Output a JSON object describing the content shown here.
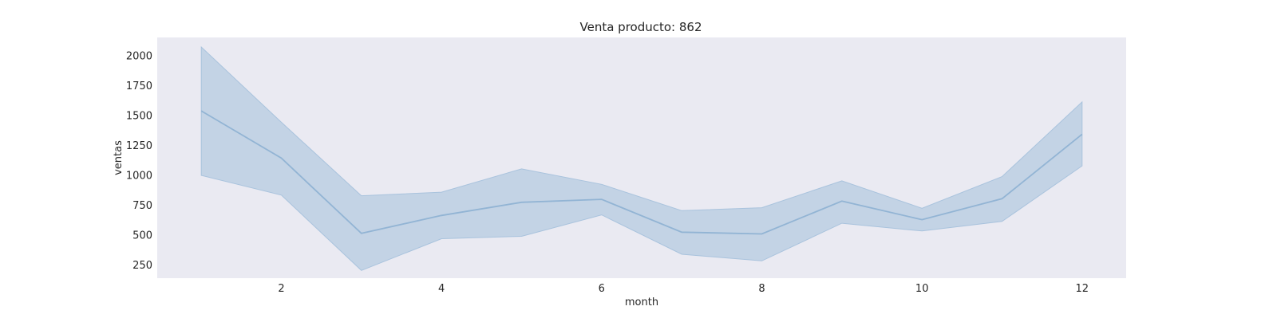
{
  "chart_data": {
    "type": "line",
    "title": "Venta producto: 862",
    "xlabel": "month",
    "ylabel": "ventas",
    "xlim": [
      0.45,
      12.55
    ],
    "ylim": [
      135,
      2150
    ],
    "x_ticks": [
      2,
      4,
      6,
      8,
      10,
      12
    ],
    "y_ticks": [
      250,
      500,
      750,
      1000,
      1250,
      1500,
      1750,
      2000
    ],
    "grid": false,
    "legend": "none",
    "colors": {
      "plot_bg": "#eaeaf2",
      "line": "#92b4d4",
      "band": "#c3d3e5",
      "band_edge": "#a9c3dd"
    },
    "series": [
      {
        "x": [
          1,
          2,
          3,
          4,
          5,
          6,
          7,
          8,
          9,
          10,
          11,
          12
        ],
        "y": [
          1535,
          1140,
          510,
          660,
          770,
          795,
          520,
          505,
          780,
          625,
          800,
          1340
        ],
        "ci_lower": [
          995,
          830,
          200,
          465,
          485,
          665,
          335,
          280,
          595,
          530,
          610,
          1075
        ],
        "ci_upper": [
          2070,
          1440,
          825,
          855,
          1050,
          920,
          700,
          725,
          950,
          720,
          985,
          1610
        ]
      }
    ]
  }
}
